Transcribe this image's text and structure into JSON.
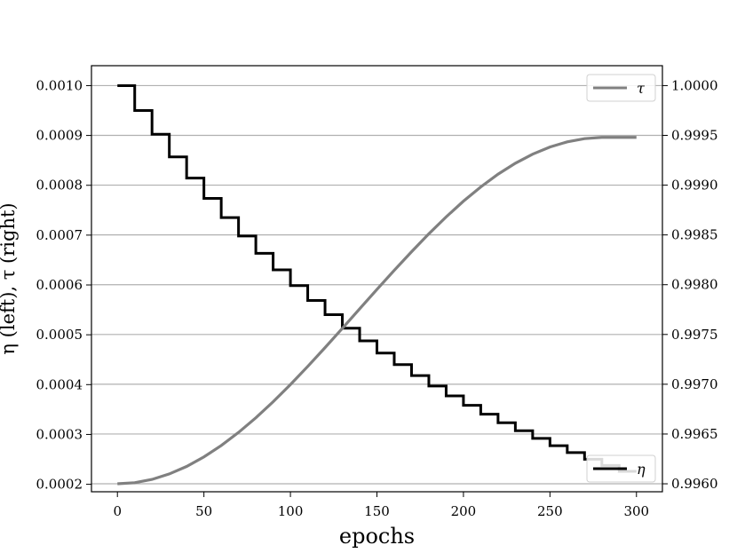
{
  "chart_data": {
    "type": "line",
    "xlabel": "epochs",
    "ylabel": "η (left), τ (right)",
    "xlim": [
      -15,
      315
    ],
    "xticks": [
      0,
      50,
      100,
      150,
      200,
      250,
      300
    ],
    "grid": "horizontal at right-axis ticks",
    "left_axis": {
      "ylim": [
        0.000185,
        0.00104
      ],
      "ticks": [
        0.0002,
        0.0003,
        0.0004,
        0.0005,
        0.0006,
        0.0007,
        0.0008,
        0.0009,
        0.001
      ],
      "tick_labels": [
        "0.0002",
        "0.0003",
        "0.0004",
        "0.0005",
        "0.0006",
        "0.0007",
        "0.0008",
        "0.0009",
        "0.0010"
      ]
    },
    "right_axis": {
      "ylim": [
        0.99592,
        1.0002
      ],
      "ticks": [
        0.996,
        0.9965,
        0.997,
        0.9975,
        0.998,
        0.9985,
        0.999,
        0.9995,
        1.0
      ],
      "tick_labels": [
        "0.9960",
        "0.9965",
        "0.9970",
        "0.9975",
        "0.9980",
        "0.9985",
        "0.9990",
        "0.9995",
        "1.0000"
      ]
    },
    "series": [
      {
        "name": "η",
        "axis": "left",
        "color": "#000000",
        "style": "step",
        "x": [
          0,
          10,
          20,
          30,
          40,
          50,
          60,
          70,
          80,
          90,
          100,
          110,
          120,
          130,
          140,
          150,
          160,
          170,
          180,
          190,
          200,
          210,
          220,
          230,
          240,
          250,
          260,
          270,
          280,
          290
        ],
        "values": [
          0.001,
          0.00095,
          0.0009025,
          0.000857,
          0.0008145,
          0.0007738,
          0.0007351,
          0.0006983,
          0.0006634,
          0.0006302,
          0.0005987,
          0.0005688,
          0.0005404,
          0.0005133,
          0.0004877,
          0.0004633,
          0.0004401,
          0.0004181,
          0.0003972,
          0.0003774,
          0.0003585,
          0.0003406,
          0.0003235,
          0.0003074,
          0.000292,
          0.0002774,
          0.0002635,
          0.0002503,
          0.0002378,
          0.0002259
        ]
      },
      {
        "name": "τ",
        "axis": "right",
        "color": "#808080",
        "style": "line",
        "x": [
          0,
          10,
          20,
          30,
          40,
          50,
          60,
          70,
          80,
          90,
          100,
          110,
          120,
          130,
          140,
          150,
          160,
          170,
          180,
          190,
          200,
          210,
          220,
          230,
          240,
          250,
          260,
          270,
          280,
          290,
          300
        ],
        "values": [
          0.996,
          0.996011,
          0.996044,
          0.996099,
          0.996174,
          0.99627,
          0.996384,
          0.996516,
          0.996663,
          0.996824,
          0.996997,
          0.997179,
          0.997368,
          0.997561,
          0.997757,
          0.997952,
          0.998144,
          0.998331,
          0.998511,
          0.998681,
          0.998839,
          0.998982,
          0.99911,
          0.99922,
          0.999311,
          0.999383,
          0.999435,
          0.999467,
          0.99948,
          0.99948,
          0.99948
        ]
      }
    ],
    "legends": [
      {
        "label": "τ",
        "placement": "top-right",
        "color": "#808080"
      },
      {
        "label": "η",
        "placement": "bottom-right",
        "color": "#000000"
      }
    ]
  }
}
